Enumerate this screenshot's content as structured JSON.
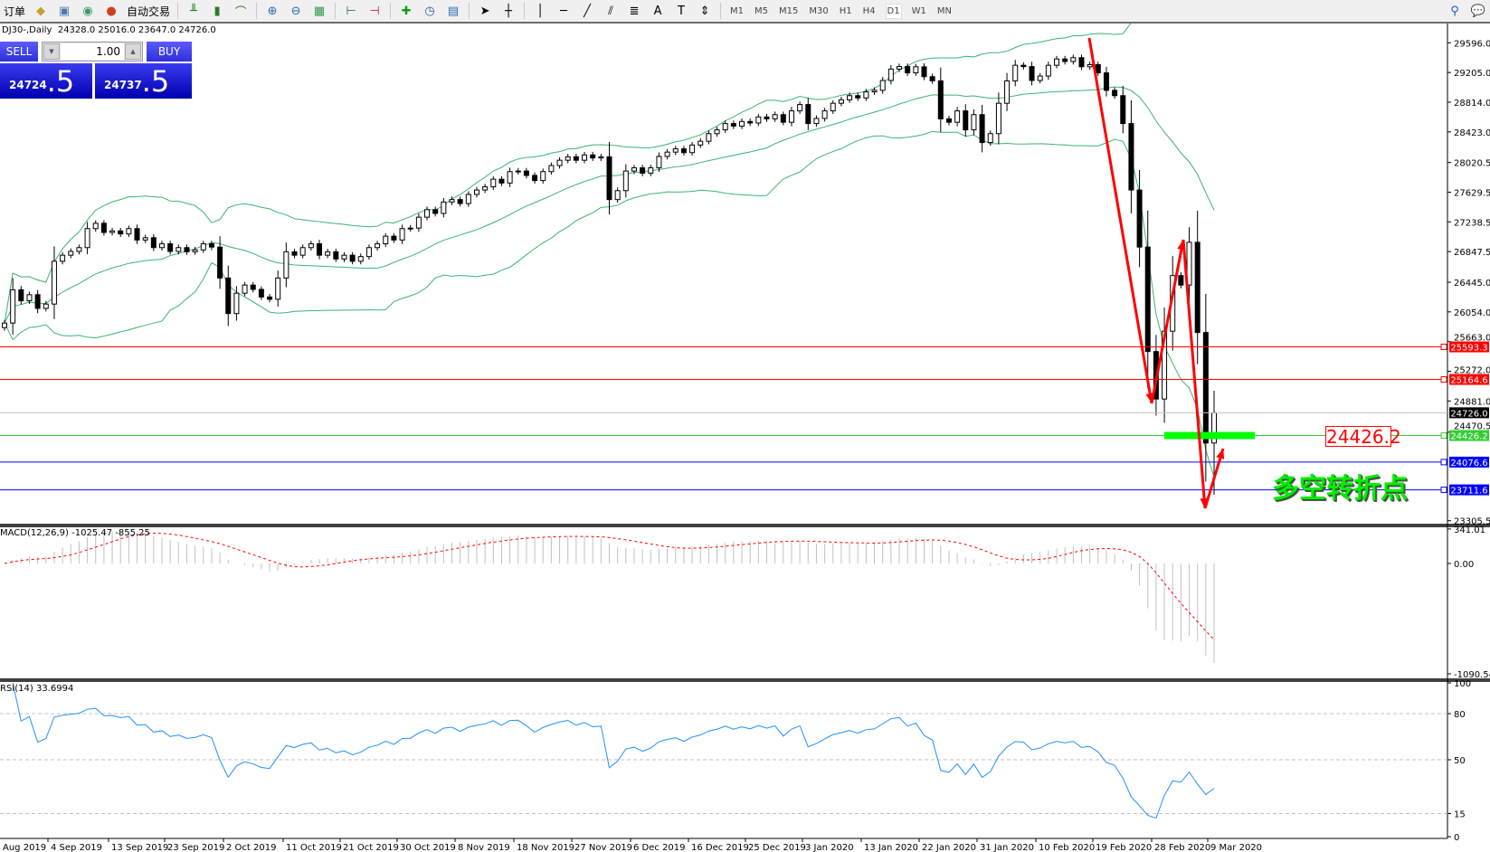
{
  "toolbar": {
    "new_order_label": "订单",
    "auto_trading_label": "自动交易",
    "timeframes": [
      "M1",
      "M5",
      "M15",
      "M30",
      "H1",
      "H4",
      "D1",
      "W1",
      "MN"
    ],
    "active_timeframe": "D1"
  },
  "chart_header": {
    "symbol": "DJ30-,Daily",
    "ohlc": "24328.0 25016.0 23647.0 24726.0"
  },
  "trade_panel": {
    "sell_label": "SELL",
    "buy_label": "BUY",
    "lot_value": "1.00",
    "sell_price_main": "24724",
    "sell_price_frac": ".5",
    "buy_price_main": "24737",
    "buy_price_frac": ".5"
  },
  "macd": {
    "label": "MACD(12,26,9) -1025.47 -855.25",
    "range": [
      -1090.54,
      341.01
    ],
    "ticks": [
      "341.01",
      "0.00",
      "-1090.54"
    ]
  },
  "rsi": {
    "label": "RSI(14) 33.6994",
    "levels": [
      80,
      50,
      15
    ],
    "ticks": [
      "100",
      "80",
      "50",
      "15",
      "0"
    ]
  },
  "colors": {
    "bollinger": "#3cb371",
    "macd_signal": "#ff0000",
    "macd_hist": "#c0c0c0",
    "rsi_line": "#1e90ff",
    "resistance": "#ff0000",
    "support": "#0000ff",
    "pivot": "#33cc33",
    "current_price": "#000000"
  },
  "chart_data": {
    "type": "candlestick",
    "price_axis_ticks": [
      "29596.0",
      "29205.0",
      "28814.0",
      "28423.0",
      "28020.5",
      "27629.5",
      "27238.5",
      "26847.5",
      "26445.0",
      "26054.0",
      "25663.0",
      "25272.0",
      "24881.0",
      "24470.5",
      "23305.5"
    ],
    "price_range": [
      23305.5,
      29596.0
    ],
    "date_labels": [
      "Aug 2019",
      "4 Sep 2019",
      "13 Sep 2019",
      "23 Sep 2019",
      "2 Oct 2019",
      "11 Oct 2019",
      "21 Oct 2019",
      "30 Oct 2019",
      "8 Nov 2019",
      "18 Nov 2019",
      "27 Nov 2019",
      "6 Dec 2019",
      "16 Dec 2019",
      "25 Dec 2019",
      "3 Jan 2020",
      "13 Jan 2020",
      "22 Jan 2020",
      "31 Jan 2020",
      "10 Feb 2020",
      "19 Feb 2020",
      "28 Feb 2020",
      "9 Mar 2020"
    ],
    "close": [
      25907,
      26345,
      26200,
      26280,
      26100,
      26157,
      26720,
      26800,
      26850,
      26900,
      27150,
      27220,
      27100,
      27120,
      27080,
      27150,
      27000,
      27030,
      26900,
      26950,
      26850,
      26900,
      26845,
      26870,
      26950,
      26907,
      26500,
      26032,
      26300,
      26407,
      26350,
      26250,
      26220,
      26500,
      26845,
      26800,
      26900,
      26950,
      26800,
      26845,
      26750,
      26800,
      26720,
      26782,
      26900,
      26950,
      27050,
      27000,
      27150,
      27157,
      27300,
      27400,
      27350,
      27500,
      27532,
      27480,
      27600,
      27658,
      27700,
      27800,
      27750,
      27900,
      27908,
      27850,
      27783,
      27900,
      27980,
      28050,
      28095,
      28050,
      28120,
      28080,
      28095,
      27532,
      27650,
      27908,
      27950,
      27880,
      27950,
      28100,
      28157,
      28200,
      28150,
      28250,
      28300,
      28400,
      28450,
      28533,
      28500,
      28560,
      28540,
      28620,
      28595,
      28650,
      28550,
      28700,
      28783,
      28533,
      28600,
      28700,
      28800,
      28845,
      28900,
      28870,
      28950,
      28970,
      29100,
      29250,
      29283,
      29200,
      29280,
      29150,
      29095,
      28595,
      28550,
      28700,
      28450,
      28650,
      28283,
      28400,
      28800,
      29095,
      29300,
      29283,
      29100,
      29158,
      29300,
      29383,
      29350,
      29400,
      29280,
      29308,
      29200,
      28970,
      28900,
      28533,
      27658,
      26907,
      25532,
      24907,
      25800,
      26532,
      26407,
      26970,
      25782,
      24328,
      24726
    ],
    "last_bar": {
      "open": 24328.0,
      "high": 25016.0,
      "low": 23647.0,
      "close": 24726.0
    },
    "horizontal_lines": [
      {
        "price": "25593.3",
        "kind": "resistance"
      },
      {
        "price": "25164.6",
        "kind": "resistance"
      },
      {
        "price": "24726.0",
        "kind": "current_price"
      },
      {
        "price": "24426.2",
        "kind": "pivot"
      },
      {
        "price": "24076.6",
        "kind": "support"
      },
      {
        "price": "23711.6",
        "kind": "support"
      }
    ],
    "indicators": [
      "Bollinger Bands(20,2)",
      "MACD(12,26,9)",
      "RSI(14)"
    ]
  },
  "annotations": {
    "pivot_value": "24426.2",
    "pivot_text": "多空转折点"
  }
}
